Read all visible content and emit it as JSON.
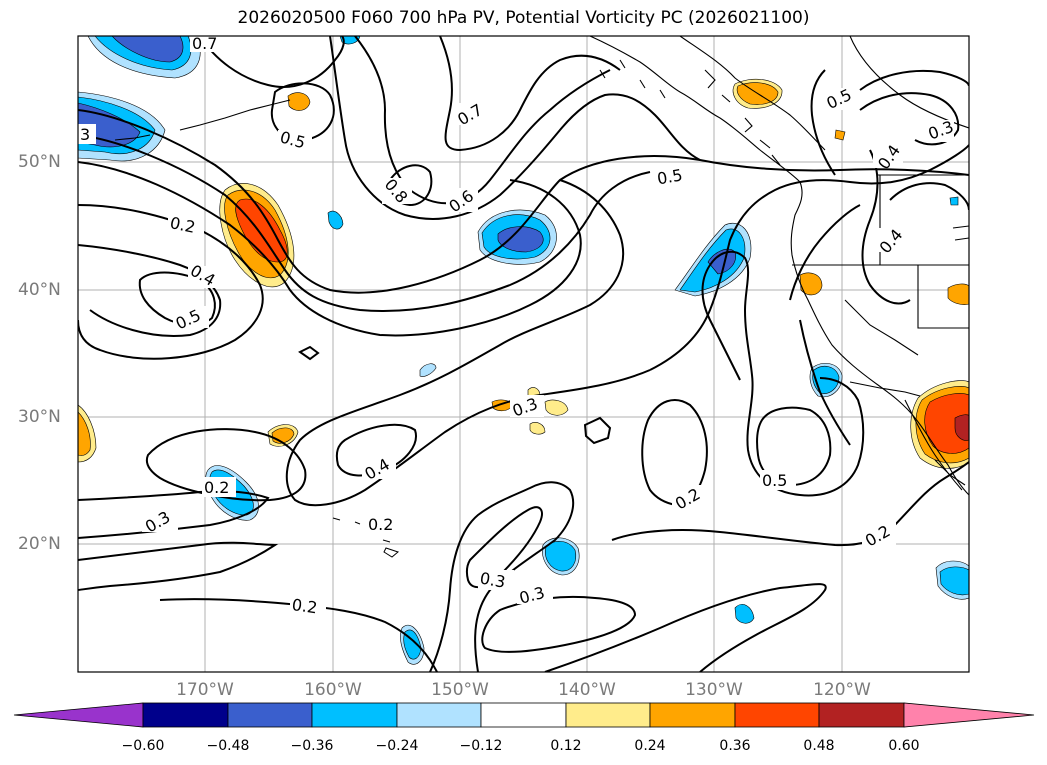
{
  "title": "2026020500 F060 700 hPa PV, Potential Vorticity PC (2026021100)",
  "lat_labels": [
    "50°N",
    "40°N",
    "30°N",
    "20°N"
  ],
  "lon_labels": [
    "170°W",
    "160°W",
    "150°W",
    "140°W",
    "130°W",
    "120°W"
  ],
  "contour_labels": [
    "0.7",
    "3",
    "0.5",
    "0.7",
    "0.5",
    "0.5",
    "0.8",
    "0.6",
    "0.2",
    "0.4",
    "0.5",
    "0.3",
    "0.4",
    "0.4",
    "0.3",
    "0.2",
    "0.2",
    "0.3",
    "0.2",
    "0.3",
    "0.3",
    "0.2",
    "0.5",
    "0.2",
    "0.4"
  ],
  "colorbar": {
    "ticks": [
      "−0.60",
      "−0.48",
      "−0.36",
      "−0.24",
      "−0.12",
      "0.12",
      "0.24",
      "0.36",
      "0.48",
      "0.60"
    ],
    "colors": [
      "#9933cc",
      "#00008b",
      "#3a5fcd",
      "#00bfff",
      "#b0e2ff",
      "#ffffff",
      "#ffec8b",
      "#ffa500",
      "#ff4500",
      "#b22222",
      "#ff82ab"
    ]
  },
  "palette": {
    "deep_blue": "#3a5fcd",
    "light_blue": "#00bfff",
    "pale_blue": "#b0e2ff",
    "yellow": "#ffec8b",
    "orange": "#ffa500",
    "red_orange": "#ff4500"
  }
}
